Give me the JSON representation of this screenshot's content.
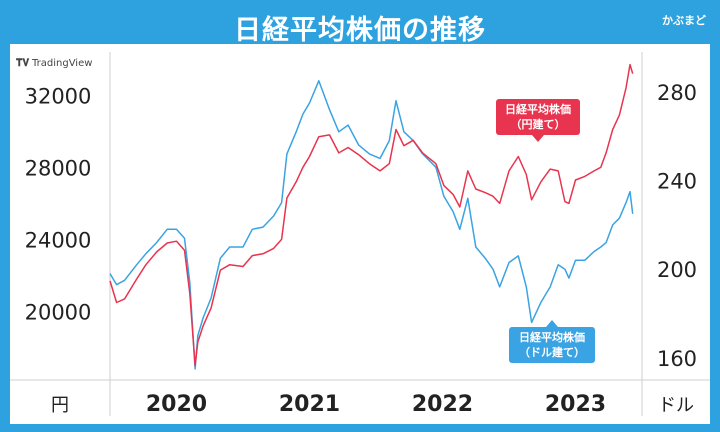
{
  "header": {
    "title": "日経平均株価の推移",
    "brand": "かぶまど"
  },
  "watermark": "TradingView",
  "colors": {
    "background": "#2da2df",
    "yen_line": "#e8344e",
    "usd_line": "#3aa3e3",
    "axis": "#cfcfcf",
    "text": "#222222"
  },
  "labels": {
    "yen": [
      "日経平均株価",
      "（円建て）"
    ],
    "usd": [
      "日経平均株価",
      "（ドル建て）"
    ],
    "left_unit": "円",
    "right_unit": "ドル"
  },
  "chart_data": {
    "type": "line",
    "x_ticks": [
      "2020",
      "2021",
      "2022",
      "2023"
    ],
    "x_range": [
      2019.55,
      2023.55
    ],
    "y_left": {
      "ticks": [
        "20000",
        "24000",
        "28000",
        "32000"
      ],
      "range": [
        16200,
        34400
      ]
    },
    "y_right": {
      "ticks": [
        "160",
        "200",
        "240",
        "280"
      ],
      "range": [
        150,
        298
      ]
    },
    "series": [
      {
        "name": "日経平均株価（円建て）",
        "axis": "left",
        "points": [
          [
            2019.55,
            21700
          ],
          [
            2019.6,
            20500
          ],
          [
            2019.66,
            20700
          ],
          [
            2019.75,
            21800
          ],
          [
            2019.82,
            22600
          ],
          [
            2019.9,
            23300
          ],
          [
            2019.98,
            23800
          ],
          [
            2020.05,
            23900
          ],
          [
            2020.11,
            23400
          ],
          [
            2020.15,
            21000
          ],
          [
            2020.19,
            17000
          ],
          [
            2020.21,
            18300
          ],
          [
            2020.25,
            19200
          ],
          [
            2020.31,
            20200
          ],
          [
            2020.38,
            22300
          ],
          [
            2020.45,
            22600
          ],
          [
            2020.55,
            22500
          ],
          [
            2020.62,
            23100
          ],
          [
            2020.7,
            23200
          ],
          [
            2020.78,
            23500
          ],
          [
            2020.84,
            24000
          ],
          [
            2020.88,
            26300
          ],
          [
            2020.95,
            27200
          ],
          [
            2021.0,
            28000
          ],
          [
            2021.05,
            28600
          ],
          [
            2021.12,
            29700
          ],
          [
            2021.2,
            29800
          ],
          [
            2021.27,
            28800
          ],
          [
            2021.34,
            29100
          ],
          [
            2021.42,
            28700
          ],
          [
            2021.5,
            28200
          ],
          [
            2021.58,
            27800
          ],
          [
            2021.65,
            28200
          ],
          [
            2021.7,
            30100
          ],
          [
            2021.76,
            29200
          ],
          [
            2021.83,
            29500
          ],
          [
            2021.9,
            28800
          ],
          [
            2022.0,
            28200
          ],
          [
            2022.06,
            27000
          ],
          [
            2022.13,
            26500
          ],
          [
            2022.18,
            25800
          ],
          [
            2022.24,
            27800
          ],
          [
            2022.3,
            26800
          ],
          [
            2022.37,
            26600
          ],
          [
            2022.43,
            26400
          ],
          [
            2022.48,
            26000
          ],
          [
            2022.55,
            27800
          ],
          [
            2022.62,
            28600
          ],
          [
            2022.68,
            27600
          ],
          [
            2022.72,
            26200
          ],
          [
            2022.79,
            27200
          ],
          [
            2022.86,
            27900
          ],
          [
            2022.92,
            27800
          ],
          [
            2022.97,
            26100
          ],
          [
            2023.0,
            26000
          ],
          [
            2023.05,
            27300
          ],
          [
            2023.12,
            27500
          ],
          [
            2023.19,
            27800
          ],
          [
            2023.24,
            28000
          ],
          [
            2023.28,
            28800
          ],
          [
            2023.33,
            30100
          ],
          [
            2023.38,
            30900
          ],
          [
            2023.43,
            32400
          ],
          [
            2023.46,
            33700
          ],
          [
            2023.48,
            33200
          ]
        ]
      },
      {
        "name": "日経平均株価（ドル建て）",
        "axis": "right",
        "points": [
          [
            2019.55,
            198
          ],
          [
            2019.6,
            193
          ],
          [
            2019.66,
            195
          ],
          [
            2019.75,
            202
          ],
          [
            2019.82,
            207
          ],
          [
            2019.9,
            212
          ],
          [
            2019.98,
            218
          ],
          [
            2020.05,
            218
          ],
          [
            2020.11,
            214
          ],
          [
            2020.15,
            194
          ],
          [
            2020.19,
            155
          ],
          [
            2020.21,
            170
          ],
          [
            2020.25,
            178
          ],
          [
            2020.31,
            187
          ],
          [
            2020.38,
            205
          ],
          [
            2020.45,
            210
          ],
          [
            2020.55,
            210
          ],
          [
            2020.62,
            218
          ],
          [
            2020.7,
            219
          ],
          [
            2020.78,
            224
          ],
          [
            2020.84,
            230
          ],
          [
            2020.88,
            252
          ],
          [
            2020.95,
            262
          ],
          [
            2021.0,
            270
          ],
          [
            2021.05,
            275
          ],
          [
            2021.12,
            285
          ],
          [
            2021.2,
            272
          ],
          [
            2021.27,
            262
          ],
          [
            2021.34,
            265
          ],
          [
            2021.42,
            256
          ],
          [
            2021.5,
            252
          ],
          [
            2021.58,
            250
          ],
          [
            2021.65,
            258
          ],
          [
            2021.7,
            276
          ],
          [
            2021.76,
            262
          ],
          [
            2021.83,
            258
          ],
          [
            2021.9,
            252
          ],
          [
            2022.0,
            246
          ],
          [
            2022.06,
            233
          ],
          [
            2022.13,
            226
          ],
          [
            2022.18,
            218
          ],
          [
            2022.24,
            232
          ],
          [
            2022.3,
            210
          ],
          [
            2022.37,
            205
          ],
          [
            2022.43,
            200
          ],
          [
            2022.48,
            192
          ],
          [
            2022.55,
            203
          ],
          [
            2022.62,
            206
          ],
          [
            2022.68,
            192
          ],
          [
            2022.72,
            176
          ],
          [
            2022.79,
            185
          ],
          [
            2022.86,
            192
          ],
          [
            2022.92,
            202
          ],
          [
            2022.97,
            200
          ],
          [
            2023.0,
            196
          ],
          [
            2023.05,
            204
          ],
          [
            2023.12,
            204
          ],
          [
            2023.19,
            208
          ],
          [
            2023.24,
            210
          ],
          [
            2023.28,
            212
          ],
          [
            2023.33,
            220
          ],
          [
            2023.38,
            223
          ],
          [
            2023.43,
            230
          ],
          [
            2023.46,
            235
          ],
          [
            2023.48,
            225
          ]
        ]
      }
    ]
  }
}
